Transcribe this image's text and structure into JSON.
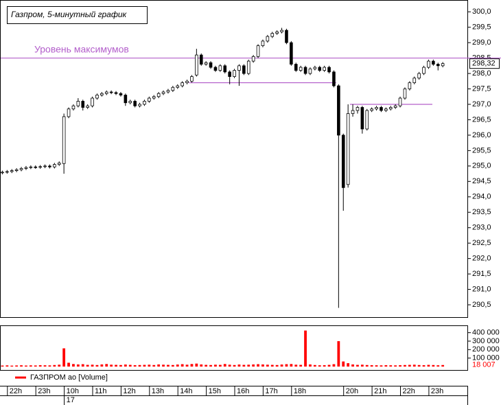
{
  "chart_data": {
    "type": "candlestick",
    "title": "Газпром, 5-минутный график",
    "xlim": [
      -0.5,
      98.05
    ],
    "xticks": [
      {
        "value": 1.5,
        "label": "22h"
      },
      {
        "value": 7.5,
        "label": "23h"
      },
      {
        "value": 13.5,
        "label": "10h"
      },
      {
        "value": 19.5,
        "label": "11h"
      },
      {
        "value": 25.5,
        "label": "12h"
      },
      {
        "value": 31.5,
        "label": "13h"
      },
      {
        "value": 37.5,
        "label": "14h"
      },
      {
        "value": 43.5,
        "label": "15h"
      },
      {
        "value": 49.5,
        "label": "16h"
      },
      {
        "value": 55.5,
        "label": "17h"
      },
      {
        "value": 61.5,
        "label": "18h"
      },
      {
        "value": 72.5,
        "label": "20h"
      },
      {
        "value": 78.5,
        "label": "21h"
      },
      {
        "value": 84.5,
        "label": "22h"
      },
      {
        "value": 90.5,
        "label": "23h"
      }
    ],
    "date_ticks": [
      {
        "value": 13.5,
        "label": "17"
      }
    ],
    "ylim": [
      290.1,
      300.16
    ],
    "yticks": [
      {
        "value": 290.5,
        "label": "290,5"
      },
      {
        "value": 291,
        "label": "291,0"
      },
      {
        "value": 291.5,
        "label": "291,5"
      },
      {
        "value": 292,
        "label": "292,0"
      },
      {
        "value": 292.5,
        "label": "292,5"
      },
      {
        "value": 293,
        "label": "293,0"
      },
      {
        "value": 293.5,
        "label": "293,5"
      },
      {
        "value": 294,
        "label": "294,0"
      },
      {
        "value": 294.5,
        "label": "294,5"
      },
      {
        "value": 295,
        "label": "295,0"
      },
      {
        "value": 295.5,
        "label": "295,5"
      },
      {
        "value": 296,
        "label": "296,0"
      },
      {
        "value": 296.5,
        "label": "296,5"
      },
      {
        "value": 297,
        "label": "297,0"
      },
      {
        "value": 297.5,
        "label": "297,5"
      },
      {
        "value": 298,
        "label": "298,0"
      },
      {
        "value": 298.5,
        "label": "298,5"
      },
      {
        "value": 299,
        "label": "299,0"
      },
      {
        "value": 299.5,
        "label": "299,5"
      },
      {
        "value": 300,
        "label": "300,0"
      }
    ],
    "open": [
      294.78,
      294.8,
      294.82,
      294.85,
      294.88,
      294.92,
      294.95,
      294.97,
      294.96,
      294.98,
      295.0,
      294.97,
      295.05,
      295.08,
      296.6,
      296.85,
      296.95,
      297.1,
      296.9,
      296.95,
      297.2,
      297.3,
      297.35,
      297.4,
      297.38,
      297.35,
      297.3,
      297.05,
      297.1,
      296.95,
      297.0,
      297.1,
      297.2,
      297.25,
      297.35,
      297.4,
      297.45,
      297.55,
      297.6,
      297.7,
      297.75,
      297.95,
      298.6,
      298.3,
      298.35,
      298.2,
      298.1,
      298.25,
      298.05,
      297.9,
      298.1,
      298.25,
      298.0,
      298.4,
      298.55,
      298.9,
      299.05,
      299.2,
      299.3,
      299.35,
      299.4,
      299.0,
      298.3,
      298.1,
      298.2,
      298.0,
      298.15,
      298.2,
      298.1,
      298.2,
      298.05,
      297.6,
      296.0,
      294.4,
      296.7,
      296.8,
      296.9,
      296.2,
      296.8,
      296.85,
      296.9,
      296.8,
      296.85,
      296.9,
      296.95,
      297.2,
      297.5,
      297.7,
      297.85,
      298.0,
      298.2,
      298.4,
      298.3,
      298.25
    ],
    "high": [
      294.85,
      294.87,
      294.9,
      294.93,
      294.97,
      295.0,
      295.02,
      295.02,
      295.03,
      295.05,
      295.05,
      295.1,
      295.15,
      296.7,
      296.9,
      297.0,
      297.2,
      297.15,
      297.0,
      297.25,
      297.35,
      297.4,
      297.45,
      297.45,
      297.43,
      297.4,
      297.35,
      297.15,
      297.15,
      297.05,
      297.15,
      297.25,
      297.3,
      297.4,
      297.45,
      297.5,
      297.6,
      297.65,
      297.75,
      297.8,
      297.95,
      298.8,
      298.65,
      298.4,
      298.4,
      298.25,
      298.3,
      298.3,
      298.1,
      298.15,
      298.3,
      298.3,
      298.45,
      298.6,
      298.95,
      299.1,
      299.25,
      299.35,
      299.4,
      299.48,
      299.45,
      299.05,
      298.35,
      298.25,
      298.25,
      298.2,
      298.25,
      298.25,
      298.25,
      298.25,
      298.1,
      297.65,
      296.05,
      297.0,
      297.0,
      296.95,
      296.95,
      296.85,
      296.9,
      296.95,
      296.95,
      296.9,
      296.95,
      297.0,
      297.25,
      297.55,
      297.75,
      297.9,
      298.05,
      298.25,
      298.45,
      298.45,
      298.35,
      298.37
    ],
    "low": [
      294.73,
      294.75,
      294.77,
      294.8,
      294.83,
      294.87,
      294.9,
      294.91,
      294.91,
      294.93,
      294.92,
      294.92,
      295.0,
      294.75,
      296.55,
      296.8,
      296.9,
      296.8,
      296.85,
      296.9,
      297.15,
      297.25,
      297.3,
      297.33,
      297.3,
      297.25,
      296.95,
      297.0,
      296.9,
      296.9,
      296.95,
      297.05,
      297.15,
      297.2,
      297.3,
      297.35,
      297.4,
      297.5,
      297.55,
      297.65,
      297.7,
      297.9,
      298.25,
      298.25,
      298.15,
      298.05,
      298.05,
      298.0,
      297.65,
      297.85,
      297.6,
      297.95,
      297.95,
      298.35,
      298.5,
      298.85,
      299.0,
      299.15,
      299.25,
      299.3,
      298.95,
      298.25,
      298.05,
      298.05,
      297.95,
      297.95,
      298.1,
      298.05,
      298.05,
      298.0,
      297.55,
      290.4,
      293.55,
      294.3,
      296.6,
      296.7,
      296.05,
      296.15,
      296.75,
      296.8,
      296.75,
      296.75,
      296.8,
      296.85,
      296.9,
      297.15,
      297.45,
      297.65,
      297.8,
      297.95,
      298.15,
      298.25,
      298.1,
      298.2
    ],
    "close": [
      294.8,
      294.82,
      294.85,
      294.88,
      294.92,
      294.95,
      294.97,
      294.96,
      294.98,
      295.0,
      294.97,
      295.05,
      295.1,
      296.6,
      296.85,
      296.95,
      297.1,
      296.9,
      296.95,
      297.2,
      297.3,
      297.35,
      297.4,
      297.38,
      297.35,
      297.3,
      297.05,
      297.1,
      296.95,
      297.0,
      297.1,
      297.2,
      297.25,
      297.35,
      297.4,
      297.45,
      297.55,
      297.6,
      297.7,
      297.75,
      297.9,
      298.6,
      298.3,
      298.35,
      298.2,
      298.1,
      298.25,
      298.05,
      297.9,
      298.1,
      298.25,
      298.0,
      298.4,
      298.55,
      298.9,
      299.05,
      299.2,
      299.3,
      299.35,
      299.4,
      299.0,
      298.3,
      298.1,
      298.2,
      298.0,
      298.15,
      298.2,
      298.1,
      298.2,
      298.05,
      297.6,
      296.0,
      294.3,
      296.7,
      296.8,
      296.9,
      296.2,
      296.8,
      296.85,
      296.9,
      296.8,
      296.85,
      296.9,
      296.95,
      297.2,
      297.5,
      297.7,
      297.85,
      298.0,
      298.2,
      298.4,
      298.3,
      298.25,
      298.32
    ],
    "up_color": "#ffffff",
    "down_color": "#000000",
    "last_label": "298,32",
    "levels": [
      {
        "label": "Уровень максимумов",
        "value": 298.5,
        "color": "#b35fcb"
      },
      {
        "value": 297.7,
        "from": 39.4,
        "to": 70.5,
        "color": "#b35fcb"
      },
      {
        "value": 297.0,
        "from": 73.4,
        "to": 90.8,
        "color": "#b35fcb"
      }
    ],
    "volume": {
      "name": "ГАЗПРОМ ао [Volume]",
      "color": "#ff0000",
      "values": [
        12000,
        14000,
        11000,
        13000,
        15000,
        12000,
        14000,
        13000,
        16000,
        15000,
        14000,
        18000,
        22000,
        215000,
        45000,
        30000,
        25000,
        28000,
        20000,
        22000,
        18000,
        25000,
        30000,
        22000,
        20000,
        18000,
        24000,
        20000,
        16000,
        18000,
        20000,
        22000,
        18000,
        25000,
        22000,
        20000,
        18000,
        24000,
        28000,
        22000,
        30000,
        35000,
        25000,
        20000,
        18000,
        22000,
        20000,
        30000,
        22000,
        18000,
        24000,
        20000,
        22000,
        25000,
        28000,
        25000,
        22000,
        20000,
        18000,
        24000,
        28000,
        30000,
        22000,
        20000,
        425000,
        25000,
        18000,
        15000,
        16000,
        20000,
        28000,
        300000,
        60000,
        40000,
        25000,
        20000,
        22000,
        18000,
        16000,
        15000,
        14000,
        16000,
        15000,
        14000,
        16000,
        18000,
        20000,
        22000,
        18000,
        16000,
        20000,
        18000,
        15000,
        18007
      ],
      "ylim": [
        0,
        470000
      ],
      "yticks": [
        {
          "value": 100000,
          "label": "100 000"
        },
        {
          "value": 200000,
          "label": "200 000"
        },
        {
          "value": 300000,
          "label": "300 000"
        },
        {
          "value": 400000,
          "label": "400 000"
        }
      ],
      "last_label": "18 007"
    }
  }
}
